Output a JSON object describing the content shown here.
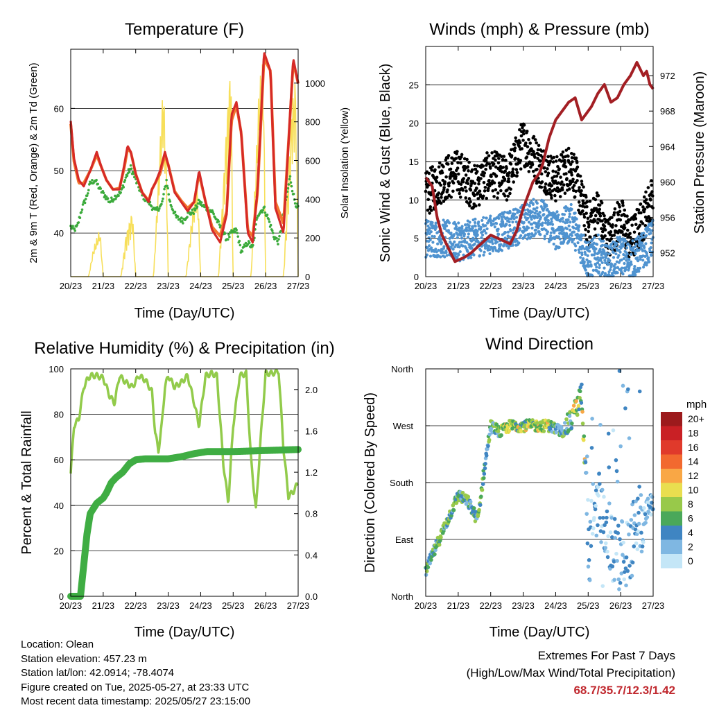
{
  "panels": {
    "temperature": {
      "title": "Temperature (F)",
      "ylabel_left": "2m & 9m T (Red, Orange) & 2m Td (Green)",
      "ylabel_right": "Solar Insolation (Yellow)",
      "xlabel": "Time (Day/UTC)",
      "colors": {
        "t2m": "#d62a27",
        "t9m": "#f2762e",
        "td": "#3cab3c",
        "solar": "#f7df5a"
      }
    },
    "winds": {
      "title": "Winds (mph) & Pressure (mb)",
      "ylabel_left": "Sonic Wind & Gust (Blue, Black)",
      "ylabel_right": "Station Pressure (Maroon)",
      "xlabel": "Time (Day/UTC)",
      "colors": {
        "wind": "#4f93d0",
        "gust": "#000000",
        "pressure": "#a31f24"
      }
    },
    "humidity": {
      "title": "Relative Humidity (%) & Precipitation (in)",
      "ylabel_left": "Percent & Total Rainfall",
      "xlabel": "Time (Day/UTC)",
      "colors": {
        "rh": "#92cb4b",
        "precip": "#3fad43"
      }
    },
    "direction": {
      "title": "Wind Direction",
      "ylabel_left": "Direction (Colored By Speed)",
      "xlabel": "Time (Day/UTC)",
      "legend_title": "mph",
      "legend": [
        {
          "label": "20+",
          "color": "#9c1a1c"
        },
        {
          "label": "18",
          "color": "#c92025"
        },
        {
          "label": "16",
          "color": "#e03a2b"
        },
        {
          "label": "14",
          "color": "#f2692f"
        },
        {
          "label": "12",
          "color": "#f9a745"
        },
        {
          "label": "10",
          "color": "#e9de4f"
        },
        {
          "label": "8",
          "color": "#98c94a"
        },
        {
          "label": "6",
          "color": "#4aa85a"
        },
        {
          "label": "4",
          "color": "#3f85c2"
        },
        {
          "label": "2",
          "color": "#7fb7e2"
        },
        {
          "label": "0",
          "color": "#c4e6f7"
        }
      ]
    }
  },
  "info": {
    "location": "Location: Olean",
    "elevation": "Station elevation: 457.23 m",
    "latlon": "Station lat/lon: 42.0914; -78.4074",
    "created": "Figure created on Tue, 2025-05-27, at 23:33 UTC",
    "timestamp": "Most recent data timestamp: 2025/05/27 23:15:00"
  },
  "extremes": {
    "title": "Extremes For Past 7 Days",
    "subtitle": "(High/Low/Max Wind/Total Precipitation)",
    "values": "68.7/35.7/12.3/1.42"
  },
  "chart_data": [
    {
      "type": "line",
      "title": "Temperature (F)",
      "xlabel": "Time (Day/UTC)",
      "ylabel": "2m & 9m T (Red, Orange) & 2m Td (Green)",
      "y2label": "Solar Insolation (Yellow)",
      "x_ticks": [
        "20/23",
        "21/23",
        "22/23",
        "23/23",
        "24/23",
        "25/23",
        "26/23",
        "27/23"
      ],
      "xlim": [
        0,
        7
      ],
      "ylim": [
        33,
        69.5
      ],
      "y_ticks": [
        40,
        50,
        60
      ],
      "y2lim": [
        0,
        1175
      ],
      "y2_ticks": [
        0,
        200,
        400,
        600,
        800,
        1000
      ],
      "grid": true,
      "series": [
        {
          "name": "2m T",
          "axis": "left",
          "x": [
            0,
            0.1,
            0.25,
            0.4,
            0.6,
            0.8,
            0.95,
            1.1,
            1.3,
            1.5,
            1.65,
            1.75,
            1.85,
            2.0,
            2.2,
            2.4,
            2.5,
            2.6,
            2.75,
            2.9,
            3.0,
            3.2,
            3.4,
            3.6,
            3.8,
            3.95,
            4.15,
            4.35,
            4.6,
            4.8,
            4.95,
            5.1,
            5.25,
            5.45,
            5.6,
            5.75,
            5.95,
            6.15,
            6.3,
            6.55,
            6.75,
            6.85,
            7.0
          ],
          "y": [
            58,
            52,
            48.5,
            47.5,
            50,
            53,
            50.5,
            48.5,
            47,
            47,
            51,
            54,
            53,
            49.5,
            46.5,
            45,
            47,
            48,
            50,
            53,
            51,
            46.5,
            45,
            43.5,
            45,
            50,
            45,
            40.5,
            38.5,
            43,
            59,
            61,
            56,
            40,
            38.5,
            47,
            69,
            66,
            44,
            40,
            59,
            68,
            64
          ]
        },
        {
          "name": "9m T",
          "axis": "left",
          "x": [
            0,
            0.1,
            0.25,
            0.4,
            0.6,
            0.8,
            0.95,
            1.1,
            1.3,
            1.5,
            1.65,
            1.75,
            1.85,
            2.0,
            2.2,
            2.4,
            2.5,
            2.6,
            2.75,
            2.9,
            3.0,
            3.2,
            3.4,
            3.6,
            3.8,
            3.95,
            4.15,
            4.35,
            4.6,
            4.8,
            4.95,
            5.1,
            5.25,
            5.45,
            5.6,
            5.75,
            5.95,
            6.15,
            6.3,
            6.55,
            6.75,
            6.85,
            7.0
          ],
          "y": [
            57.5,
            51.5,
            48,
            48,
            50,
            52.5,
            50.5,
            48.5,
            47,
            47.2,
            50.5,
            53.5,
            53,
            49.5,
            46.5,
            45.2,
            47,
            48,
            49.5,
            52.5,
            51,
            46.7,
            45.2,
            44,
            45,
            49.5,
            45,
            41,
            39.5,
            43.5,
            58,
            60.5,
            56,
            40.5,
            39.5,
            46.5,
            68,
            66,
            45,
            41.5,
            58.5,
            67.5,
            64
          ]
        },
        {
          "name": "2m Td",
          "axis": "left",
          "x": [
            0,
            0.1,
            0.2,
            0.35,
            0.5,
            0.6,
            0.75,
            0.9,
            1.05,
            1.2,
            1.4,
            1.55,
            1.7,
            1.85,
            2.0,
            2.2,
            2.4,
            2.6,
            2.8,
            2.95,
            3.05,
            3.25,
            3.45,
            3.6,
            3.8,
            3.95,
            4.15,
            4.35,
            4.6,
            4.8,
            4.95,
            5.1,
            5.25,
            5.45,
            5.6,
            5.75,
            5.95,
            6.1,
            6.25,
            6.4,
            6.6,
            6.75,
            6.9,
            7.0
          ],
          "y": [
            41,
            40.5,
            41,
            44,
            46,
            48,
            48.5,
            47,
            46,
            45,
            46,
            46.5,
            49,
            50.5,
            48.5,
            46,
            45,
            43.5,
            44.5,
            48.5,
            45,
            42.5,
            42,
            43,
            43.5,
            45,
            44,
            43.5,
            41,
            39,
            40,
            40.5,
            37,
            38.5,
            37.5,
            43,
            44,
            42,
            39.5,
            38.5,
            44.5,
            49,
            45,
            44
          ]
        },
        {
          "name": "Solar Insolation",
          "axis": "right",
          "x": [
            0,
            0.55,
            0.7,
            0.9,
            1.0,
            1.55,
            1.7,
            1.9,
            2.0,
            2.55,
            2.75,
            2.85,
            2.95,
            3.0,
            3.55,
            3.75,
            3.9,
            4.0,
            4.55,
            4.8,
            4.93,
            5.0,
            5.55,
            5.8,
            5.93,
            6.0,
            6.55,
            6.8,
            6.93,
            7.0
          ],
          "y": [
            0,
            0,
            150,
            250,
            0,
            0,
            220,
            350,
            0,
            0,
            700,
            1020,
            600,
            0,
            0,
            350,
            500,
            0,
            0,
            820,
            1150,
            0,
            0,
            1000,
            1130,
            0,
            0,
            900,
            1050,
            0
          ]
        }
      ]
    },
    {
      "type": "scatter",
      "title": "Winds (mph) & Pressure (mb)",
      "xlabel": "Time (Day/UTC)",
      "ylabel": "Sonic Wind & Gust (Blue, Black)",
      "y2label": "Station Pressure (Maroon)",
      "x_ticks": [
        "20/23",
        "21/23",
        "22/23",
        "23/23",
        "24/23",
        "25/23",
        "26/23",
        "27/23"
      ],
      "xlim": [
        0,
        7
      ],
      "ylim": [
        0,
        30
      ],
      "y_ticks": [
        0,
        5,
        10,
        15,
        20,
        25
      ],
      "y2lim": [
        949.3,
        975.3
      ],
      "y2_ticks": [
        952,
        956,
        960,
        964,
        968,
        972
      ],
      "grid": true,
      "series": [
        {
          "name": "Sonic Wind",
          "x": [
            0,
            0.5,
            1.0,
            1.5,
            2.0,
            2.5,
            3.0,
            3.5,
            4.0,
            4.5,
            5.0,
            5.3,
            5.6,
            6.0,
            6.3,
            6.6,
            7.0
          ],
          "y": [
            5,
            5,
            4.5,
            5,
            5.5,
            6,
            7,
            8,
            6,
            7,
            2,
            3,
            1.5,
            3,
            2,
            3,
            5
          ]
        },
        {
          "name": "Gust",
          "x": [
            0,
            0.5,
            1.0,
            1.5,
            2.0,
            2.5,
            3.0,
            3.5,
            4.0,
            4.5,
            5.0,
            5.3,
            5.6,
            6.0,
            6.3,
            6.6,
            7.0
          ],
          "y": [
            10,
            12,
            13,
            11,
            13,
            12,
            17,
            14,
            12,
            14,
            6,
            8,
            4,
            7,
            4,
            6,
            10
          ]
        },
        {
          "name": "Station Pressure",
          "axis": "right",
          "x": [
            0,
            0.2,
            0.35,
            0.5,
            0.7,
            0.9,
            1.2,
            1.4,
            1.7,
            2.0,
            2.3,
            2.6,
            2.8,
            3.0,
            3.3,
            3.5,
            3.6,
            3.8,
            4.0,
            4.2,
            4.4,
            4.6,
            4.8,
            5.0,
            5.1,
            5.3,
            5.5,
            5.7,
            5.9,
            6.1,
            6.3,
            6.5,
            6.7,
            6.8,
            6.9,
            7.0
          ],
          "y": [
            960.5,
            959.5,
            956,
            954,
            952.5,
            951,
            951.5,
            952,
            953,
            954,
            953.5,
            953,
            954.5,
            957,
            960,
            961,
            962,
            965,
            967,
            968,
            969,
            969.5,
            967,
            968,
            968.5,
            970,
            971,
            969,
            969.5,
            971,
            972,
            973.5,
            972,
            972.5,
            971,
            970.5
          ]
        }
      ]
    },
    {
      "type": "line",
      "title": "Relative Humidity (%) & Precipitation (in)",
      "xlabel": "Time (Day/UTC)",
      "ylabel": "Percent & Total Rainfall",
      "x_ticks": [
        "20/23",
        "21/23",
        "22/23",
        "23/23",
        "24/23",
        "25/23",
        "26/23",
        "27/23"
      ],
      "xlim": [
        0,
        7
      ],
      "ylim": [
        0,
        100
      ],
      "y_ticks": [
        0,
        20,
        40,
        60,
        80,
        100
      ],
      "y2lim": [
        0,
        2.2
      ],
      "y2_ticks": [
        0.0,
        0.4,
        0.8,
        1.2,
        1.6,
        2.0
      ],
      "grid": true,
      "series": [
        {
          "name": "Relative Humidity",
          "x": [
            0,
            0.1,
            0.25,
            0.4,
            0.5,
            0.6,
            0.8,
            1.0,
            1.2,
            1.35,
            1.5,
            1.7,
            1.9,
            2.1,
            2.3,
            2.5,
            2.6,
            2.7,
            2.8,
            2.9,
            3.0,
            3.2,
            3.4,
            3.6,
            3.8,
            3.95,
            4.15,
            4.35,
            4.5,
            4.7,
            4.85,
            5.0,
            5.2,
            5.4,
            5.55,
            5.7,
            5.85,
            6.0,
            6.2,
            6.4,
            6.55,
            6.7,
            6.85,
            7.0
          ],
          "y": [
            54,
            75,
            78,
            92,
            95,
            97,
            97,
            96,
            88,
            85,
            97,
            94,
            92,
            97,
            95,
            90,
            72,
            64,
            75,
            92,
            97,
            92,
            94,
            97,
            85,
            75,
            97,
            98,
            97,
            58,
            41,
            75,
            97,
            98,
            60,
            38,
            70,
            98,
            98,
            99,
            65,
            44,
            46,
            50
          ]
        },
        {
          "name": "Total Precipitation",
          "axis": "right",
          "x": [
            0,
            0.3,
            0.4,
            0.5,
            0.6,
            0.7,
            0.8,
            1.0,
            1.1,
            1.25,
            1.4,
            1.6,
            1.8,
            2.0,
            2.3,
            2.6,
            3.0,
            3.4,
            3.8,
            4.2,
            5.0,
            6.0,
            7.0
          ],
          "y": [
            0,
            0,
            0.3,
            0.6,
            0.8,
            0.85,
            0.9,
            0.95,
            1.0,
            1.1,
            1.15,
            1.2,
            1.28,
            1.32,
            1.33,
            1.33,
            1.33,
            1.35,
            1.38,
            1.4,
            1.4,
            1.41,
            1.42
          ]
        }
      ]
    },
    {
      "type": "scatter",
      "title": "Wind Direction",
      "xlabel": "Time (Day/UTC)",
      "ylabel": "Direction (Colored By Speed)",
      "x_ticks": [
        "20/23",
        "21/23",
        "22/23",
        "23/23",
        "24/23",
        "25/23",
        "26/23",
        "27/23"
      ],
      "xlim": [
        0,
        7
      ],
      "ylim": [
        0,
        360
      ],
      "y_ticks": [
        "North",
        "East",
        "South",
        "West",
        "North"
      ],
      "grid": true,
      "legend": "right",
      "series": [
        {
          "name": "Direction",
          "x": [
            0,
            0.5,
            1.0,
            1.3,
            1.6,
            1.8,
            2.0,
            2.3,
            2.6,
            3.0,
            3.4,
            3.8,
            4.2,
            4.5,
            4.8,
            5.0,
            5.3,
            5.6,
            6.0,
            6.3,
            6.6,
            7.0
          ],
          "y": [
            40,
            100,
            160,
            150,
            120,
            200,
            270,
            260,
            270,
            270,
            270,
            270,
            260,
            280,
            320,
            90,
            160,
            100,
            60,
            80,
            120,
            150
          ]
        }
      ]
    }
  ]
}
